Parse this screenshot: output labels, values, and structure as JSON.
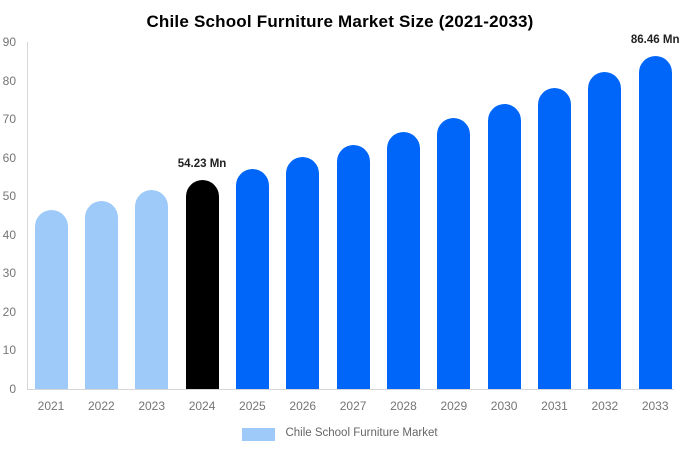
{
  "chart_data": {
    "type": "bar",
    "title": "Chile School Furniture Market Size (2021-2033)",
    "categories": [
      "2021",
      "2022",
      "2023",
      "2024",
      "2025",
      "2026",
      "2027",
      "2028",
      "2029",
      "2030",
      "2031",
      "2032",
      "2033"
    ],
    "values": [
      46.42,
      48.89,
      51.49,
      54.23,
      57.12,
      60.15,
      63.35,
      66.72,
      70.27,
      74.01,
      77.95,
      82.1,
      86.46
    ],
    "bar_styles": [
      "historical",
      "historical",
      "historical",
      "base",
      "forecast",
      "forecast",
      "forecast",
      "forecast",
      "forecast",
      "forecast",
      "forecast",
      "forecast",
      "forecast"
    ],
    "colors": {
      "historical": "#9ECAFA",
      "base": "#000000",
      "forecast": "#0066FA",
      "axis": "#D6D6D6",
      "tick_label": "#757575",
      "data_label": "#222222",
      "title": "#000000"
    },
    "xlabel": "",
    "ylabel": "",
    "ylim": [
      0,
      90
    ],
    "y_ticks": [
      0,
      10,
      20,
      30,
      40,
      50,
      60,
      70,
      80,
      90
    ],
    "grid": false,
    "annotations": [
      {
        "category": "2024",
        "label": "54.23 Mn"
      },
      {
        "category": "2033",
        "label": "86.46 Mn"
      }
    ],
    "legend": {
      "position": "bottom",
      "label": "Chile School Furniture Market",
      "swatch_color": "#9ECAFA"
    }
  }
}
